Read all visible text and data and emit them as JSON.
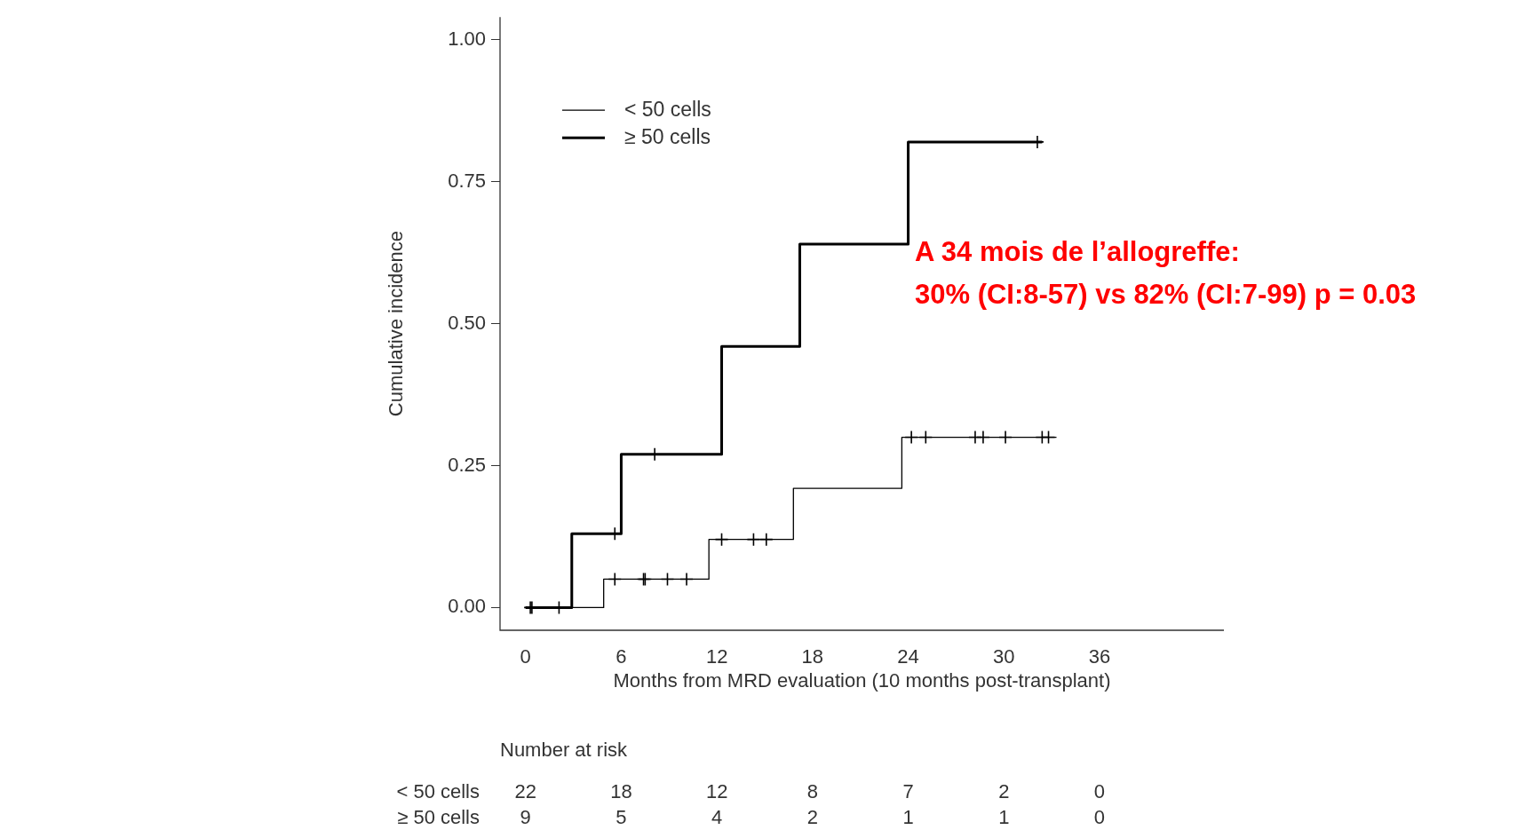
{
  "chart_data": {
    "type": "step",
    "xlabel": "Months from MRD evaluation (10 months post-transplant)",
    "ylabel": "Cumulative incidence",
    "series": [
      {
        "name": "< 50 cells",
        "color": "#000000",
        "marker": "none",
        "x": [
          0,
          4.9,
          11.5,
          16.8,
          23.6,
          33.3
        ],
        "values": [
          0,
          0.05,
          0.12,
          0.21,
          0.3,
          0.3
        ]
      },
      {
        "name": "≥ 50 cells",
        "color": "#000000",
        "marker": "none",
        "x": [
          0,
          2.9,
          6.0,
          12.3,
          17.2,
          24.0,
          32.4
        ],
        "values": [
          0,
          0.13,
          0.27,
          0.46,
          0.64,
          0.82,
          0.82
        ]
      },
      {
        "type": "scatter",
        "color": "#000000",
        "marker": "cross",
        "x": [
          0.3,
          0.4,
          2.1,
          5.6,
          7.4,
          7.5,
          8.9,
          10.1,
          12.3,
          14.3,
          15.1,
          24.2,
          25.1,
          28.2,
          28.7,
          30.1,
          32.4,
          32.8
        ],
        "values": [
          0,
          0,
          0,
          0.05,
          0.05,
          0.05,
          0.05,
          0.05,
          0.12,
          0.12,
          0.12,
          0.3,
          0.3,
          0.3,
          0.3,
          0.3,
          0.3,
          0.3
        ]
      },
      {
        "type": "scatter",
        "color": "#000000",
        "marker": "cross",
        "x": [
          5.6,
          8.1,
          32.1
        ],
        "values": [
          0.13,
          0.27,
          0.82
        ]
      }
    ],
    "xlim": [
      -1.6,
      43.8
    ],
    "xticks": [
      0,
      6,
      12,
      18,
      24,
      30,
      36
    ],
    "ylim": [
      -0.04,
      1.04
    ],
    "yticks": [
      {
        "value": 0,
        "label": "0.00"
      },
      {
        "value": 0.25,
        "label": "0.25"
      },
      {
        "value": 0.5,
        "label": "0.50"
      },
      {
        "value": 0.75,
        "label": "0.75"
      },
      {
        "value": 1,
        "label": "1.00"
      }
    ],
    "grid": false,
    "legend": "top left",
    "annotations": [
      "A 34 mois de l’allogreffe:",
      "30% (CI:8-57) vs 82% (CI:7-99) p = 0.03",
      "Number at risk",
      "< 50 cells",
      "22",
      "18",
      "12",
      "8",
      "7",
      "2",
      "0",
      "≥ 50 cells",
      "9",
      "5",
      "4",
      "2",
      "1",
      "1",
      "0"
    ]
  }
}
